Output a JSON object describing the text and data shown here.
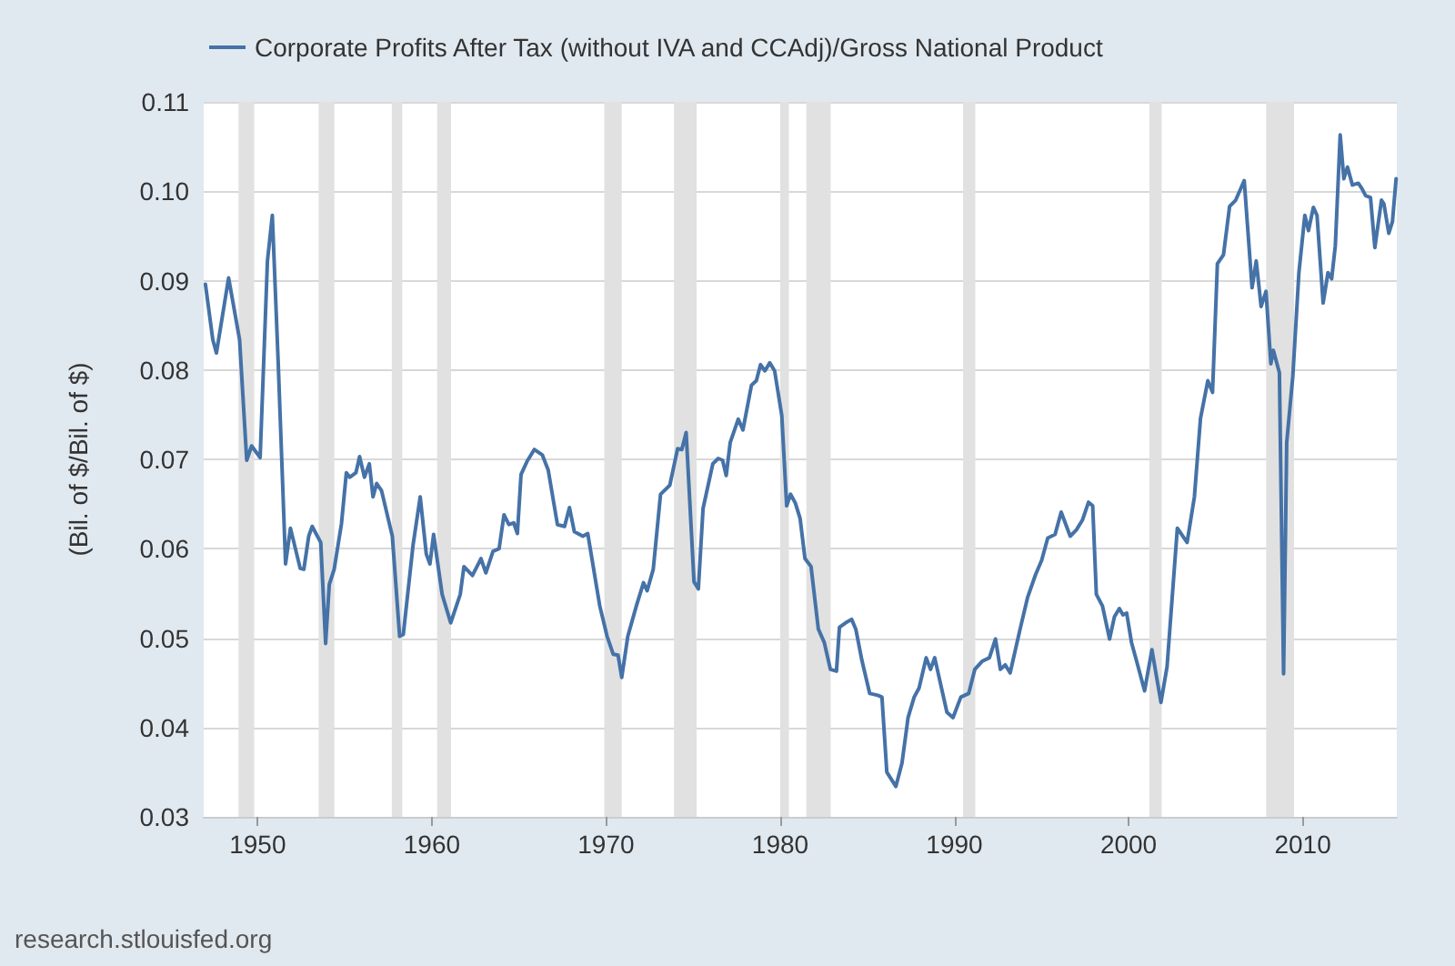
{
  "chart_data": {
    "type": "line",
    "ylabel": "(Bil. of $/Bil. of $)",
    "legend": "top",
    "grid": "y",
    "marker": "none",
    "line_style": "solid",
    "xlim": [
      1946.9,
      2015.4
    ],
    "xticks": [
      1950,
      1960,
      1970,
      1980,
      1990,
      2000,
      2010
    ],
    "ylim": [
      0.03,
      0.11
    ],
    "yticks": [
      0.03,
      0.04,
      0.05,
      0.06,
      0.07,
      0.08,
      0.09,
      {
        "value": 0.1,
        "label": "0.10"
      },
      0.11
    ],
    "annotations": [
      "research.stlouisfed.org"
    ],
    "bands": [
      {
        "axis": "x",
        "from": 1948.9,
        "to": 1949.8,
        "color": "#e1e1e1"
      },
      {
        "axis": "x",
        "from": 1953.5,
        "to": 1954.4,
        "color": "#e1e1e1"
      },
      {
        "axis": "x",
        "from": 1957.7,
        "to": 1958.3,
        "color": "#e1e1e1"
      },
      {
        "axis": "x",
        "from": 1960.3,
        "to": 1961.1,
        "color": "#e1e1e1"
      },
      {
        "axis": "x",
        "from": 1969.9,
        "to": 1970.9,
        "color": "#e1e1e1"
      },
      {
        "axis": "x",
        "from": 1973.9,
        "to": 1975.2,
        "color": "#e1e1e1"
      },
      {
        "axis": "x",
        "from": 1980.0,
        "to": 1980.5,
        "color": "#e1e1e1"
      },
      {
        "axis": "x",
        "from": 1981.5,
        "to": 1982.9,
        "color": "#e1e1e1"
      },
      {
        "axis": "x",
        "from": 1990.5,
        "to": 1991.2,
        "color": "#e1e1e1"
      },
      {
        "axis": "x",
        "from": 2001.2,
        "to": 2001.9,
        "color": "#e1e1e1"
      },
      {
        "axis": "x",
        "from": 2007.9,
        "to": 2009.5,
        "color": "#e1e1e1"
      }
    ],
    "series": [
      {
        "name": "Corporate Profits After Tax (without IVA and CCAdj)/Gross National Product",
        "color": "#4572a7",
        "x": [
          1947.0,
          1947.42,
          1947.63,
          1948.33,
          1948.96,
          1949.37,
          1949.65,
          1950.14,
          1950.56,
          1950.84,
          1951.18,
          1951.6,
          1951.88,
          1952.44,
          1952.65,
          1952.93,
          1953.13,
          1953.62,
          1953.9,
          1954.11,
          1954.39,
          1954.81,
          1955.09,
          1955.29,
          1955.64,
          1955.85,
          1956.13,
          1956.41,
          1956.62,
          1956.83,
          1957.11,
          1957.73,
          1958.15,
          1958.36,
          1958.92,
          1959.33,
          1959.68,
          1959.89,
          1960.1,
          1960.59,
          1961.08,
          1961.63,
          1961.84,
          1962.33,
          1962.82,
          1963.1,
          1963.51,
          1963.86,
          1964.14,
          1964.42,
          1964.7,
          1964.91,
          1965.12,
          1965.47,
          1965.88,
          1966.34,
          1966.68,
          1967.21,
          1967.62,
          1967.9,
          1968.18,
          1968.67,
          1968.95,
          1969.64,
          1970.06,
          1970.41,
          1970.69,
          1970.9,
          1971.25,
          1971.74,
          1972.15,
          1972.36,
          1972.71,
          1973.13,
          1973.66,
          1974.11,
          1974.35,
          1974.6,
          1975.05,
          1975.3,
          1975.57,
          1976.13,
          1976.44,
          1976.69,
          1976.9,
          1977.13,
          1977.59,
          1977.86,
          1978.35,
          1978.63,
          1978.87,
          1979.12,
          1979.4,
          1979.68,
          1980.09,
          1980.37,
          1980.59,
          1980.87,
          1981.14,
          1981.42,
          1981.77,
          1982.19,
          1982.53,
          1982.88,
          1983.23,
          1983.4,
          1983.75,
          1984.1,
          1984.34,
          1984.69,
          1985.14,
          1985.6,
          1985.84,
          1986.12,
          1986.64,
          1986.99,
          1987.34,
          1987.69,
          1987.97,
          1988.38,
          1988.63,
          1988.87,
          1989.57,
          1989.92,
          1990.37,
          1990.82,
          1991.17,
          1991.59,
          1992.01,
          1992.36,
          1992.64,
          1992.92,
          1993.2,
          1993.76,
          1994.21,
          1994.66,
          1995.01,
          1995.36,
          1995.78,
          1996.13,
          1996.65,
          1997.0,
          1997.35,
          1997.7,
          1997.94,
          1998.15,
          1998.5,
          1998.91,
          1999.19,
          1999.47,
          1999.68,
          1999.89,
          2000.17,
          2000.45,
          2000.92,
          2001.34,
          2001.86,
          2002.21,
          2002.8,
          2003.36,
          2003.78,
          2004.13,
          2004.55,
          2004.82,
          2005.1,
          2005.45,
          2005.8,
          2006.15,
          2006.64,
          2007.09,
          2007.33,
          2007.61,
          2007.89,
          2008.17,
          2008.31,
          2008.66,
          2008.9,
          2009.08,
          2009.43,
          2009.78,
          2010.12,
          2010.33,
          2010.61,
          2010.82,
          2011.17,
          2011.45,
          2011.66,
          2011.87,
          2012.15,
          2012.36,
          2012.57,
          2012.85,
          2013.19,
          2013.4,
          2013.61,
          2013.89,
          2014.14,
          2014.52,
          2014.66,
          2014.94,
          2015.15,
          2015.36
        ],
        "values": [
          0.0896,
          0.0834,
          0.0819,
          0.0903,
          0.0834,
          0.0699,
          0.0715,
          0.0702,
          0.0922,
          0.0973,
          0.0807,
          0.0583,
          0.0623,
          0.0578,
          0.0577,
          0.0614,
          0.0625,
          0.0607,
          0.0494,
          0.056,
          0.0577,
          0.0628,
          0.0685,
          0.068,
          0.0685,
          0.0703,
          0.068,
          0.0695,
          0.0658,
          0.0673,
          0.0665,
          0.0614,
          0.0502,
          0.0504,
          0.0604,
          0.0658,
          0.0594,
          0.0583,
          0.0616,
          0.0549,
          0.0517,
          0.0549,
          0.058,
          0.057,
          0.0589,
          0.0573,
          0.0597,
          0.06,
          0.0638,
          0.0627,
          0.0629,
          0.0617,
          0.0683,
          0.0698,
          0.0711,
          0.0705,
          0.0688,
          0.0627,
          0.0625,
          0.0646,
          0.0619,
          0.0614,
          0.0617,
          0.0536,
          0.0502,
          0.0482,
          0.0481,
          0.0456,
          0.0502,
          0.0536,
          0.0562,
          0.0553,
          0.0577,
          0.0661,
          0.0671,
          0.0712,
          0.0711,
          0.073,
          0.0563,
          0.0555,
          0.0645,
          0.0695,
          0.0701,
          0.0699,
          0.0682,
          0.0719,
          0.0745,
          0.0733,
          0.0783,
          0.0788,
          0.0806,
          0.0799,
          0.0808,
          0.0799,
          0.0749,
          0.0648,
          0.0661,
          0.0651,
          0.0634,
          0.0589,
          0.058,
          0.051,
          0.0495,
          0.0465,
          0.0463,
          0.0512,
          0.0517,
          0.0521,
          0.051,
          0.0475,
          0.0438,
          0.0436,
          0.0434,
          0.035,
          0.0334,
          0.036,
          0.0411,
          0.0434,
          0.0444,
          0.0478,
          0.0465,
          0.0478,
          0.0417,
          0.0411,
          0.0434,
          0.0438,
          0.0465,
          0.0474,
          0.0478,
          0.0499,
          0.0465,
          0.047,
          0.0461,
          0.0509,
          0.0546,
          0.0571,
          0.0587,
          0.0612,
          0.0616,
          0.0641,
          0.0614,
          0.0621,
          0.0632,
          0.0652,
          0.0648,
          0.0549,
          0.0536,
          0.0499,
          0.0524,
          0.0533,
          0.0526,
          0.0528,
          0.0495,
          0.0475,
          0.0441,
          0.0487,
          0.0428,
          0.0468,
          0.0623,
          0.0607,
          0.0658,
          0.0746,
          0.0788,
          0.0775,
          0.0919,
          0.0929,
          0.0983,
          0.099,
          0.1012,
          0.0892,
          0.0922,
          0.0871,
          0.0888,
          0.0807,
          0.0822,
          0.0797,
          0.046,
          0.0719,
          0.0793,
          0.0909,
          0.0973,
          0.0956,
          0.0982,
          0.0973,
          0.0875,
          0.0909,
          0.0902,
          0.0939,
          0.1063,
          0.1014,
          0.1027,
          0.1007,
          0.1009,
          0.1003,
          0.0995,
          0.0993,
          0.0937,
          0.099,
          0.0986,
          0.0953,
          0.0966,
          0.1014
        ]
      }
    ]
  }
}
